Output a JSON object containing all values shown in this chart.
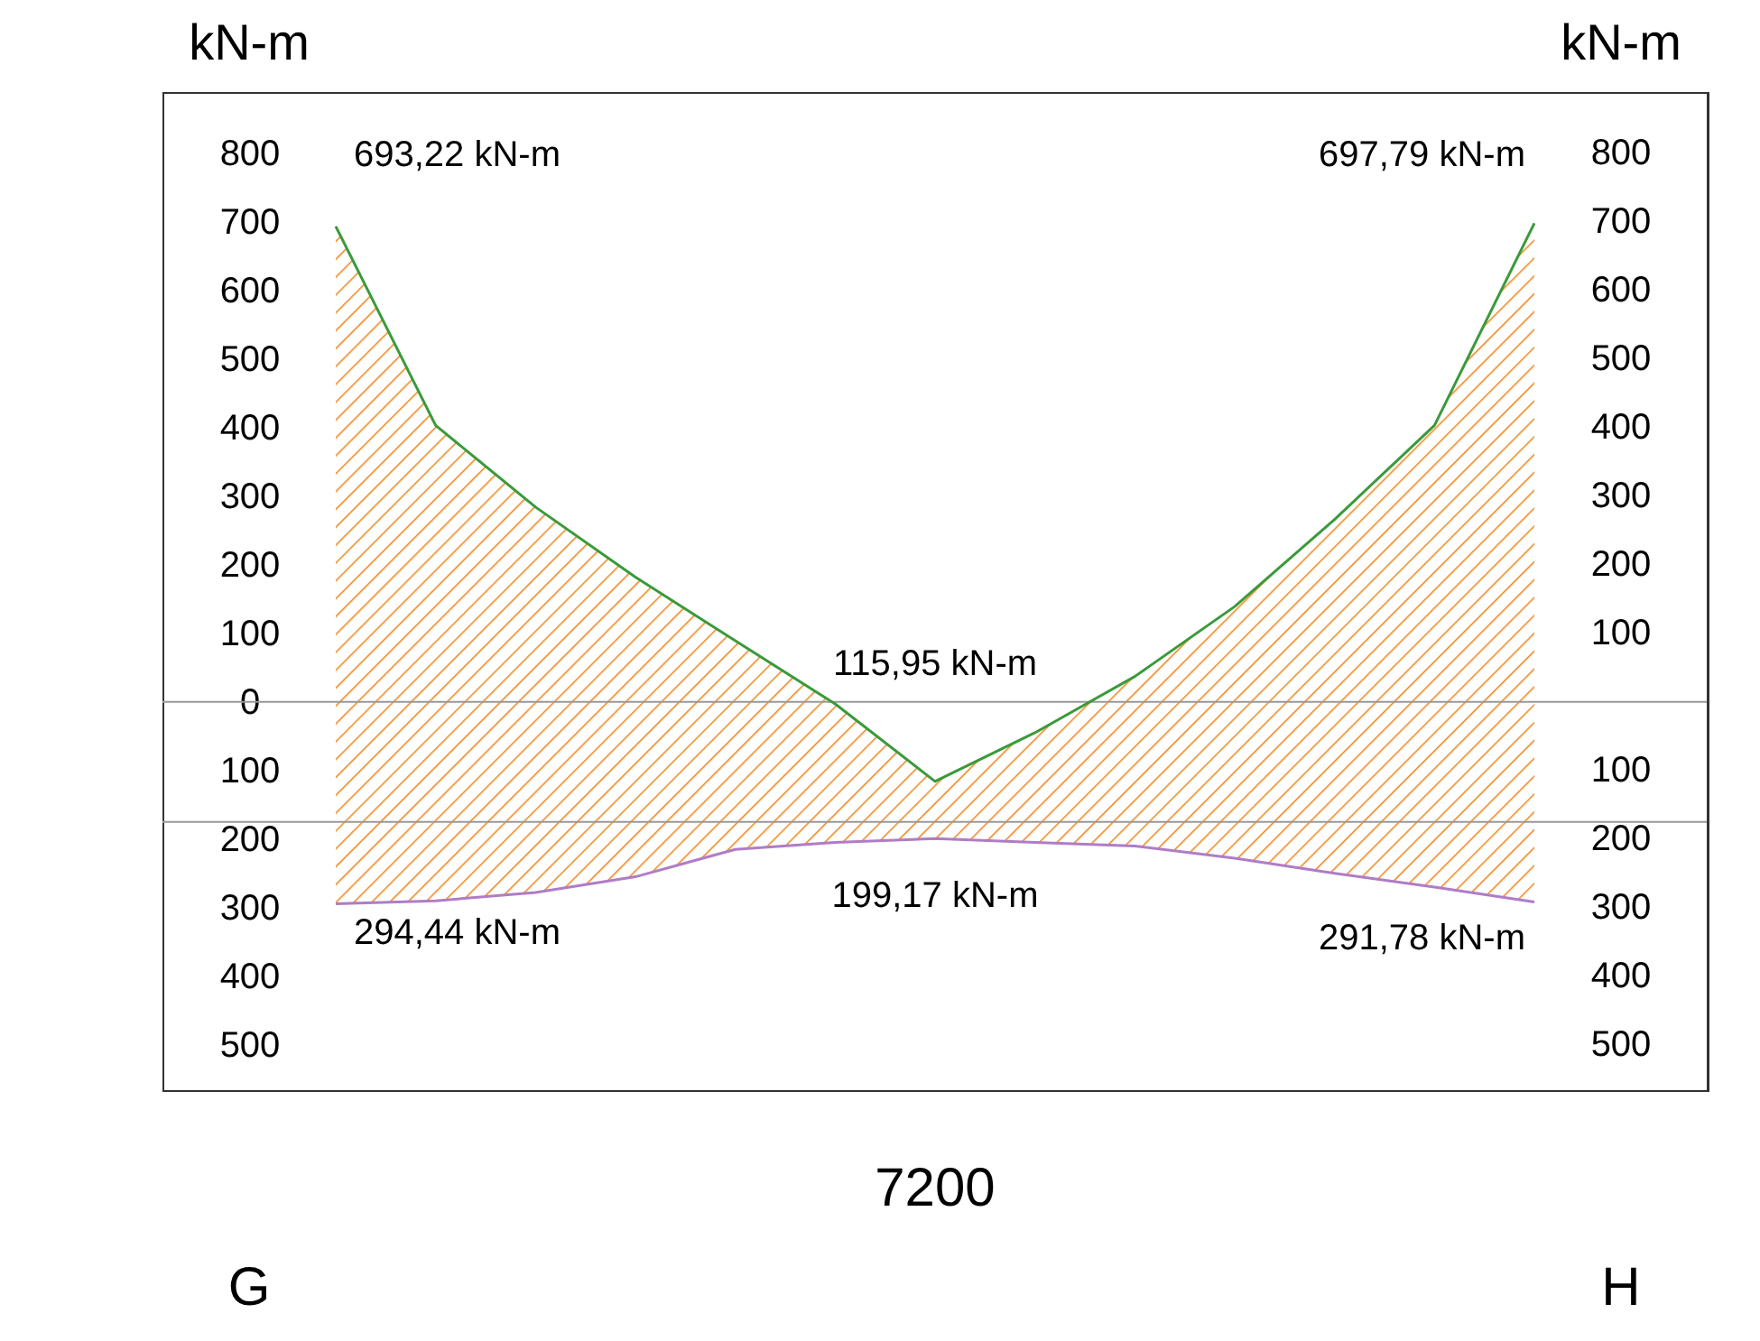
{
  "chart_data": {
    "type": "line",
    "ylabel": "kN-m",
    "y2label": "kN-m",
    "categories": [
      null,
      null,
      null,
      null,
      null,
      null,
      null,
      null,
      null,
      null,
      null,
      null,
      null
    ],
    "series": [
      {
        "color": "#3a9a3a",
        "values": [
          693.22,
          403,
          284,
          182,
          89,
          -3,
          -115.95,
          -45,
          37,
          139,
          266,
          403,
          697.79
        ],
        "upper": [
          693.22,
          403,
          284,
          182,
          89,
          -3,
          -115.95,
          -45,
          37,
          139,
          266,
          403,
          697.79
        ],
        "lower": [
          -294.44,
          -290,
          -278,
          -255,
          -215,
          -205,
          -199.17,
          -205,
          -210,
          -228,
          -250,
          -270,
          -291.78
        ]
      },
      {
        "color": "#b07cc6",
        "values": [
          -294.44,
          -290,
          -278,
          -255,
          -215,
          -205,
          -199.17,
          -205,
          -210,
          -228,
          -250,
          -270,
          -291.78
        ]
      }
    ],
    "ylim": [
      -566,
      889
    ],
    "yticks": [
      {
        "value": 800,
        "label": "800"
      },
      {
        "value": 700,
        "label": "700"
      },
      {
        "value": 600,
        "label": "600"
      },
      {
        "value": 500,
        "label": "500"
      },
      {
        "value": 400,
        "label": "400"
      },
      {
        "value": 300,
        "label": "300"
      },
      {
        "value": 200,
        "label": "200"
      },
      {
        "value": 100,
        "label": "100"
      },
      {
        "value": 0,
        "label": "0"
      },
      {
        "value": -100,
        "label": "100"
      },
      {
        "value": -200,
        "label": "200"
      },
      {
        "value": -300,
        "label": "300"
      },
      {
        "value": -400,
        "label": "400"
      },
      {
        "value": -500,
        "label": "500"
      }
    ],
    "y2lim": [
      -566,
      889
    ],
    "y2ticks": [
      {
        "value": 800,
        "label": "800"
      },
      {
        "value": 700,
        "label": "700"
      },
      {
        "value": 600,
        "label": "600"
      },
      {
        "value": 500,
        "label": "500"
      },
      {
        "value": 400,
        "label": "400"
      },
      {
        "value": 300,
        "label": "300"
      },
      {
        "value": 200,
        "label": "200"
      },
      {
        "value": 100,
        "label": "100"
      },
      {
        "value": -100,
        "label": "100"
      },
      {
        "value": -200,
        "label": "200"
      },
      {
        "value": -300,
        "label": "300"
      },
      {
        "value": -400,
        "label": "400"
      },
      {
        "value": -500,
        "label": "500"
      }
    ],
    "ref_lines": [
      {
        "axis": "y",
        "value": 0,
        "color": "#999999"
      },
      {
        "axis": "y",
        "value": -175,
        "color": "#999999"
      }
    ],
    "annotations": [
      "693,22 kN-m",
      "697,79 kN-m",
      {
        "text": "115,95 kN-m",
        "y": -115.95
      },
      {
        "text": "199,17 kN-m",
        "y": -199.17
      },
      {
        "text": "294,44 kN-m",
        "y": -294.44
      },
      "291,78 kN-m",
      "G",
      "7200",
      "H"
    ]
  }
}
